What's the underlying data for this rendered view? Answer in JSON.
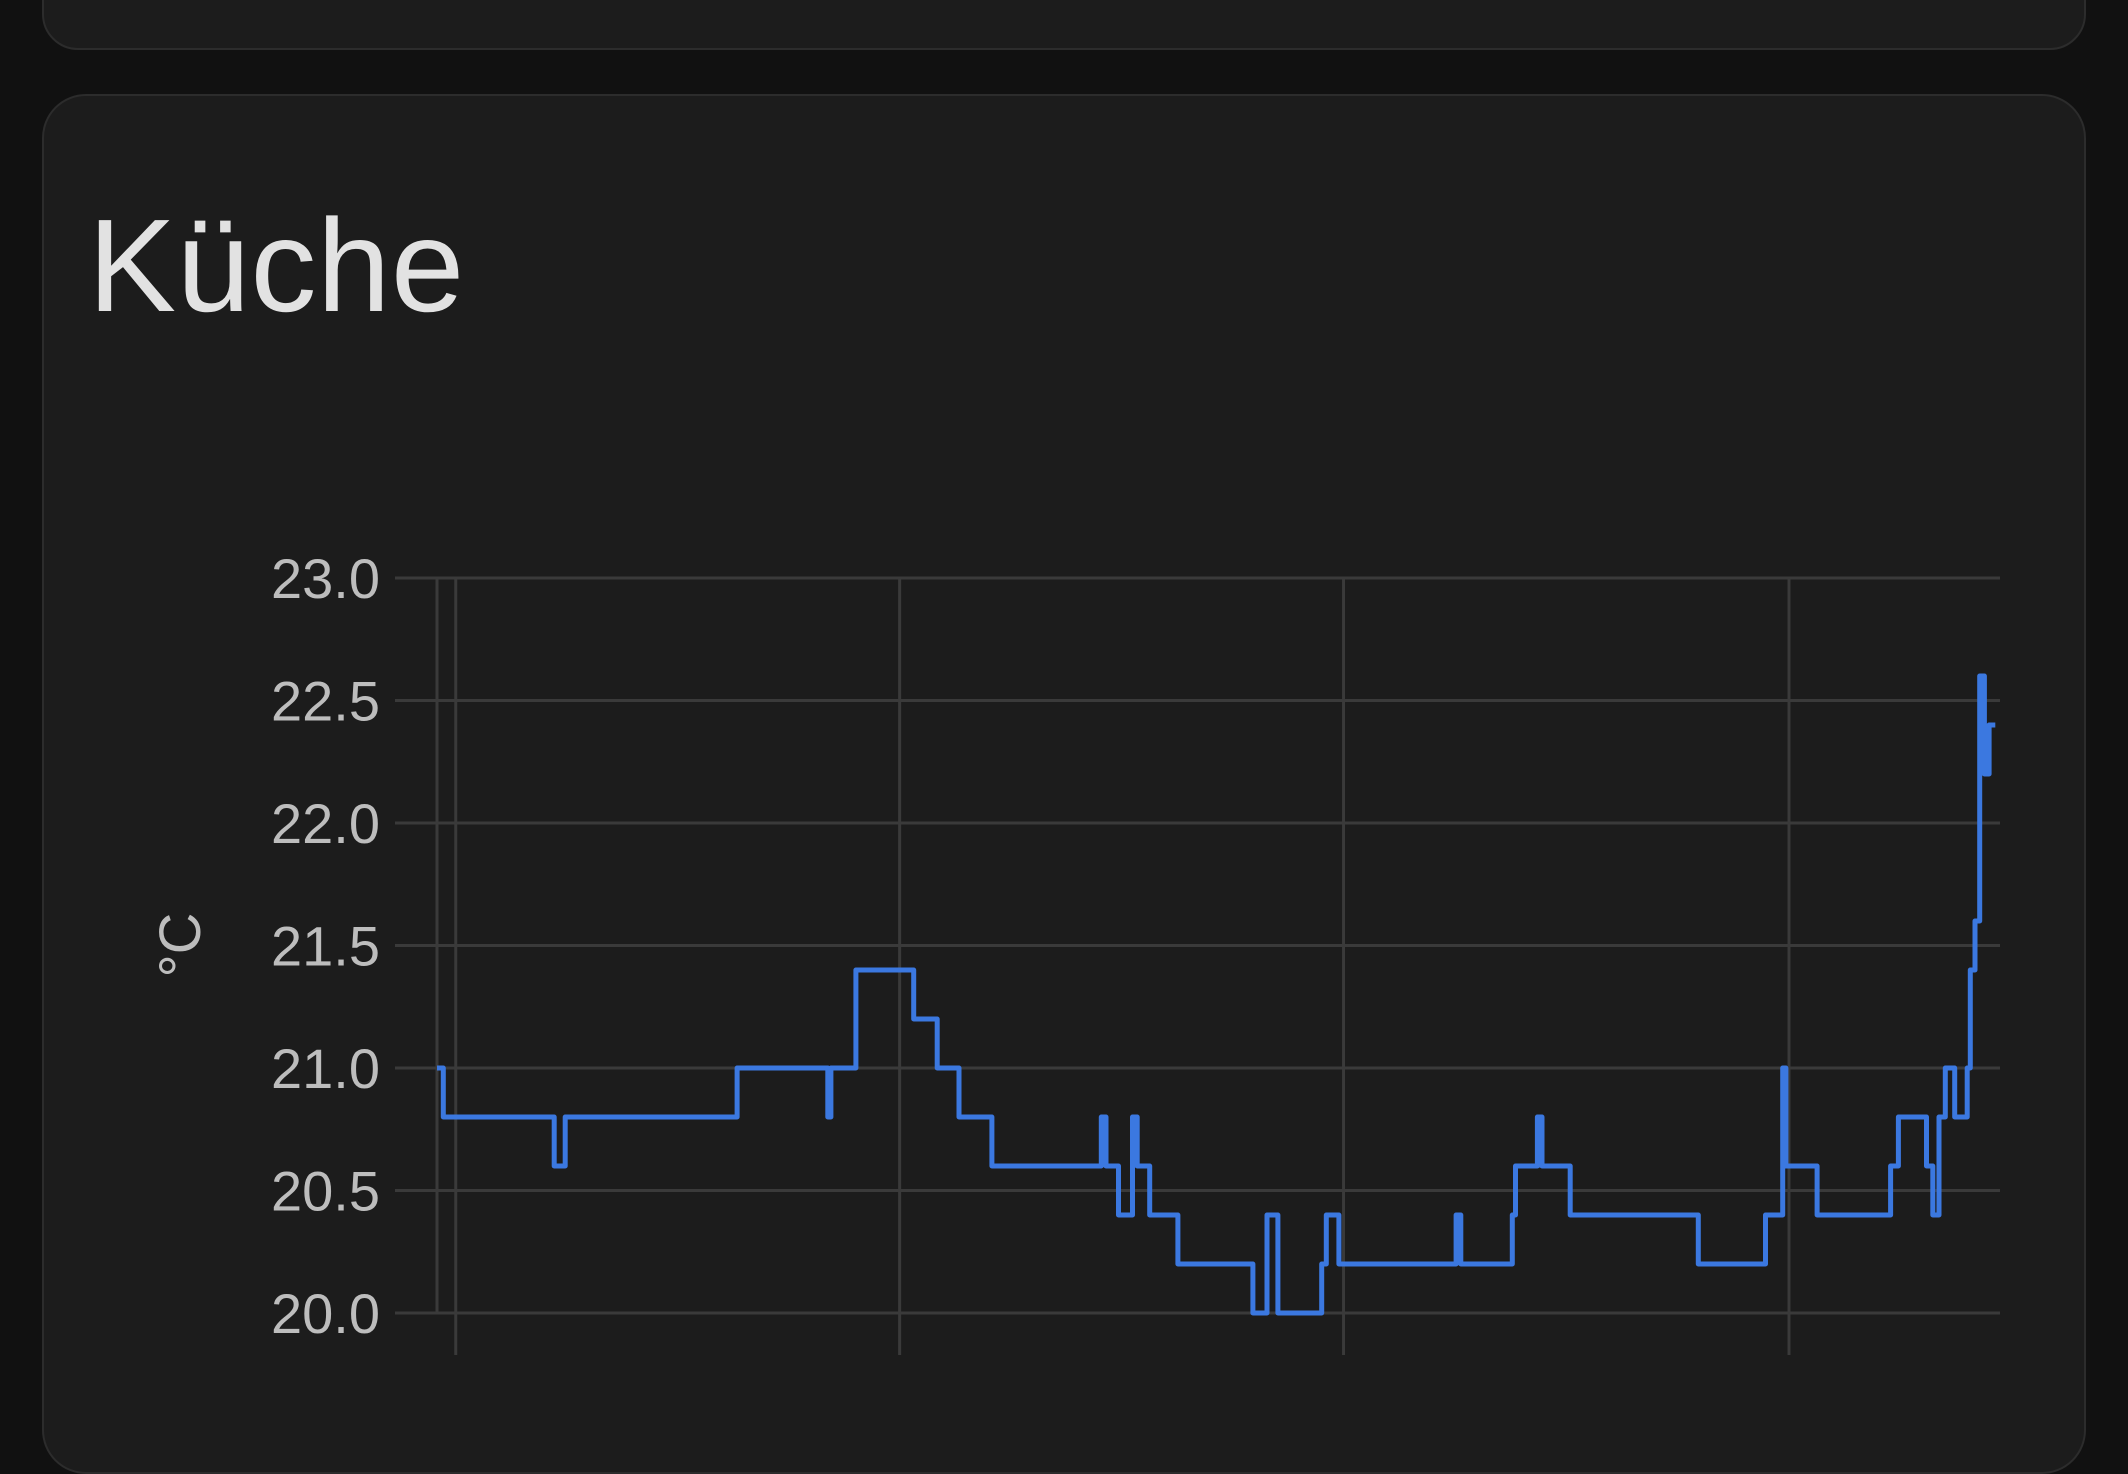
{
  "card": {
    "title": "Küche"
  },
  "chart_data": {
    "type": "line",
    "title": "Küche",
    "xlabel": "",
    "ylabel": "°C",
    "ylim": [
      20.0,
      23.0
    ],
    "yticks": [
      "23.0",
      "22.5",
      "22.0",
      "21.5",
      "21.0",
      "20.5",
      "20.0"
    ],
    "xlim": [
      0,
      100
    ],
    "x_gridlines": [
      1.2,
      29.6,
      58.0,
      86.5
    ],
    "grid": true,
    "legend": "none",
    "line_color": "#3b78e0",
    "grid_color": "#3a3a3a",
    "series": [
      {
        "interpolation": "step",
        "points": [
          [
            0,
            21.0
          ],
          [
            0.4,
            20.8
          ],
          [
            7.5,
            20.6
          ],
          [
            8.2,
            20.8
          ],
          [
            19.2,
            21.0
          ],
          [
            25.0,
            20.8
          ],
          [
            25.2,
            21.0
          ],
          [
            26.8,
            21.4
          ],
          [
            30.5,
            21.2
          ],
          [
            32.0,
            21.0
          ],
          [
            33.4,
            20.8
          ],
          [
            35.5,
            20.6
          ],
          [
            42.5,
            20.8
          ],
          [
            42.8,
            20.6
          ],
          [
            43.6,
            20.4
          ],
          [
            44.5,
            20.8
          ],
          [
            44.8,
            20.6
          ],
          [
            45.6,
            20.4
          ],
          [
            47.4,
            20.2
          ],
          [
            52.2,
            20.0
          ],
          [
            53.1,
            20.4
          ],
          [
            53.8,
            20.0
          ],
          [
            56.6,
            20.2
          ],
          [
            56.9,
            20.4
          ],
          [
            57.7,
            20.2
          ],
          [
            65.2,
            20.4
          ],
          [
            65.5,
            20.2
          ],
          [
            68.8,
            20.4
          ],
          [
            69.0,
            20.6
          ],
          [
            70.4,
            20.8
          ],
          [
            70.7,
            20.6
          ],
          [
            72.5,
            20.4
          ],
          [
            80.7,
            20.2
          ],
          [
            85.0,
            20.4
          ],
          [
            86.1,
            21.0
          ],
          [
            86.3,
            20.6
          ],
          [
            88.3,
            20.4
          ],
          [
            93.0,
            20.6
          ],
          [
            93.5,
            20.8
          ],
          [
            95.3,
            20.6
          ],
          [
            95.7,
            20.4
          ],
          [
            96.1,
            20.8
          ],
          [
            96.5,
            21.0
          ],
          [
            97.1,
            20.8
          ],
          [
            97.9,
            21.0
          ],
          [
            98.1,
            21.4
          ],
          [
            98.4,
            21.6
          ],
          [
            98.7,
            22.6
          ],
          [
            99.0,
            22.2
          ],
          [
            99.3,
            22.4
          ],
          [
            99.7,
            22.4
          ]
        ]
      }
    ]
  }
}
